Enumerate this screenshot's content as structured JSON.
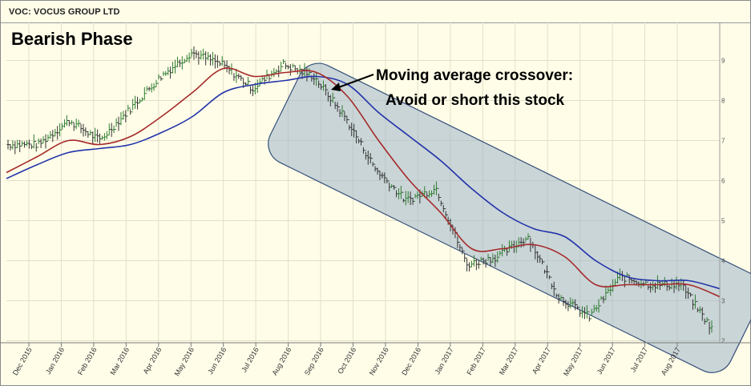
{
  "title": "VOC: VOCUS GROUP LTD",
  "annotations": {
    "phase_label": "Bearish Phase",
    "crossover_line1": "Moving average crossover:",
    "crossover_line2": "Avoid or short this stock"
  },
  "colors": {
    "background": "#fffde8",
    "price_up": "#2e7d32",
    "price_down": "#333333",
    "ma_short": "#a52a2a",
    "ma_long": "#2233aa",
    "channel_fill": "#9fb4c8",
    "channel_border": "#34507a"
  },
  "chart_data": {
    "type": "line",
    "title": "VOC: VOCUS GROUP LTD",
    "xlabel": "",
    "ylabel": "",
    "x_tick_labels": [
      "Dec 2015",
      "Jan 2016",
      "Feb 2016",
      "Mar 2016",
      "Apr 2016",
      "May 2016",
      "Jun 2016",
      "Jul 2016",
      "Aug 2016",
      "Sep 2016",
      "Oct 2016",
      "Nov 2016",
      "Dec 2016",
      "Jan 2017",
      "Feb 2017",
      "Mar 2017",
      "Apr 2017",
      "May 2017",
      "Jun 2017",
      "Jul 2017",
      "Aug 2017"
    ],
    "y_tick_labels": [
      "2",
      "3",
      "4",
      "5",
      "6",
      "7",
      "8",
      "9"
    ],
    "ylim": [
      1.95,
      9.95
    ],
    "grid": true,
    "x": [
      "2015-11",
      "2015-12",
      "2016-01",
      "2016-02",
      "2016-03",
      "2016-04",
      "2016-05",
      "2016-06",
      "2016-07",
      "2016-08",
      "2016-08b",
      "2016-09",
      "2016-10",
      "2016-11",
      "2016-12",
      "2017-01",
      "2017-02",
      "2017-03",
      "2017-04",
      "2017-05",
      "2017-06",
      "2017-07",
      "2017-08",
      "2017-09"
    ],
    "series": [
      {
        "values": [
          6.9,
          6.9,
          7.5,
          7.0,
          7.8,
          8.6,
          9.2,
          8.9,
          8.3,
          8.9,
          8.6,
          7.6,
          6.3,
          5.5,
          5.8,
          3.9,
          4.1,
          4.6,
          3.1,
          2.6,
          3.6,
          3.4,
          3.4,
          2.3
        ]
      },
      {
        "values": [
          6.2,
          6.6,
          7.0,
          6.9,
          7.1,
          7.6,
          8.2,
          8.8,
          8.6,
          8.7,
          8.7,
          8.1,
          7.0,
          6.0,
          5.2,
          4.3,
          4.3,
          4.4,
          4.1,
          3.4,
          3.4,
          3.4,
          3.4,
          3.1
        ]
      },
      {
        "values": [
          6.05,
          6.4,
          6.7,
          6.8,
          6.9,
          7.2,
          7.6,
          8.2,
          8.4,
          8.5,
          8.6,
          8.4,
          7.7,
          7.1,
          6.5,
          5.8,
          5.2,
          4.8,
          4.6,
          4.0,
          3.6,
          3.5,
          3.5,
          3.3
        ]
      }
    ],
    "annotation": "Moving average crossover: Avoid or short this stock"
  }
}
